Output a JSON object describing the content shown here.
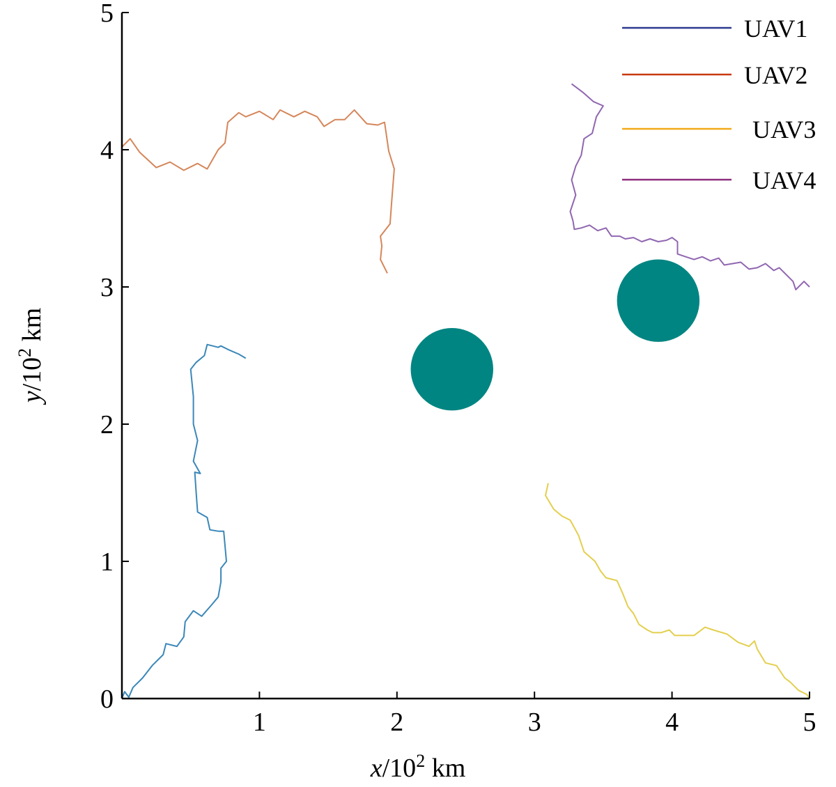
{
  "chart_data": {
    "type": "line",
    "title": "",
    "xlabel": {
      "var": "x",
      "rest": "/10",
      "sup": "2",
      "unit": " km"
    },
    "ylabel": {
      "var": "y",
      "rest": "/10",
      "sup": "2",
      "unit": " km"
    },
    "xlim": [
      0,
      5
    ],
    "ylim": [
      0,
      5
    ],
    "x_ticks": [
      "1",
      "2",
      "3",
      "4",
      "5"
    ],
    "y_ticks": [
      "0",
      "1",
      "2",
      "3",
      "4",
      "5"
    ],
    "grid": false,
    "legend_position": "top-right",
    "series": [
      {
        "name": "UAV1",
        "legend_color": "#2b3a8f",
        "line_color": "#3b87b8",
        "points": [
          [
            0.0,
            0.0
          ],
          [
            0.02,
            0.05
          ],
          [
            0.05,
            0.01
          ],
          [
            0.08,
            0.08
          ],
          [
            0.15,
            0.15
          ],
          [
            0.22,
            0.24
          ],
          [
            0.3,
            0.32
          ],
          [
            0.32,
            0.4
          ],
          [
            0.4,
            0.38
          ],
          [
            0.45,
            0.45
          ],
          [
            0.46,
            0.56
          ],
          [
            0.52,
            0.64
          ],
          [
            0.58,
            0.6
          ],
          [
            0.65,
            0.68
          ],
          [
            0.7,
            0.74
          ],
          [
            0.72,
            0.85
          ],
          [
            0.72,
            0.95
          ],
          [
            0.76,
            1.0
          ],
          [
            0.74,
            1.22
          ],
          [
            0.7,
            1.22
          ],
          [
            0.64,
            1.23
          ],
          [
            0.62,
            1.32
          ],
          [
            0.55,
            1.36
          ],
          [
            0.54,
            1.5
          ],
          [
            0.53,
            1.65
          ],
          [
            0.57,
            1.64
          ],
          [
            0.52,
            1.73
          ],
          [
            0.55,
            1.88
          ],
          [
            0.52,
            2.0
          ],
          [
            0.52,
            2.2
          ],
          [
            0.5,
            2.4
          ],
          [
            0.54,
            2.45
          ],
          [
            0.6,
            2.5
          ],
          [
            0.62,
            2.58
          ],
          [
            0.7,
            2.56
          ],
          [
            0.72,
            2.57
          ],
          [
            0.78,
            2.54
          ],
          [
            0.85,
            2.51
          ],
          [
            0.9,
            2.48
          ]
        ]
      },
      {
        "name": "UAV2",
        "legend_color": "#c8380f",
        "line_color": "#d5865a",
        "points": [
          [
            0.0,
            4.02
          ],
          [
            0.06,
            4.08
          ],
          [
            0.13,
            3.98
          ],
          [
            0.25,
            3.87
          ],
          [
            0.35,
            3.91
          ],
          [
            0.45,
            3.85
          ],
          [
            0.55,
            3.9
          ],
          [
            0.62,
            3.86
          ],
          [
            0.7,
            4.0
          ],
          [
            0.75,
            4.05
          ],
          [
            0.77,
            4.2
          ],
          [
            0.85,
            4.27
          ],
          [
            0.9,
            4.24
          ],
          [
            1.0,
            4.28
          ],
          [
            1.1,
            4.22
          ],
          [
            1.15,
            4.29
          ],
          [
            1.25,
            4.24
          ],
          [
            1.33,
            4.28
          ],
          [
            1.42,
            4.24
          ],
          [
            1.47,
            4.17
          ],
          [
            1.55,
            4.22
          ],
          [
            1.62,
            4.22
          ],
          [
            1.69,
            4.29
          ],
          [
            1.78,
            4.19
          ],
          [
            1.86,
            4.18
          ],
          [
            1.91,
            4.2
          ],
          [
            1.94,
            3.99
          ],
          [
            1.98,
            3.86
          ],
          [
            1.96,
            3.6
          ],
          [
            1.95,
            3.46
          ],
          [
            1.88,
            3.37
          ],
          [
            1.89,
            3.3
          ],
          [
            1.88,
            3.2
          ],
          [
            1.93,
            3.1
          ]
        ]
      },
      {
        "name": "UAV3",
        "legend_color": "#f2a918",
        "line_color": "#e3cf4e",
        "points": [
          [
            3.1,
            1.57
          ],
          [
            3.08,
            1.48
          ],
          [
            3.14,
            1.38
          ],
          [
            3.2,
            1.33
          ],
          [
            3.26,
            1.3
          ],
          [
            3.32,
            1.19
          ],
          [
            3.36,
            1.07
          ],
          [
            3.44,
            1.0
          ],
          [
            3.48,
            0.93
          ],
          [
            3.52,
            0.88
          ],
          [
            3.6,
            0.86
          ],
          [
            3.64,
            0.77
          ],
          [
            3.68,
            0.67
          ],
          [
            3.72,
            0.62
          ],
          [
            3.76,
            0.54
          ],
          [
            3.82,
            0.5
          ],
          [
            3.86,
            0.48
          ],
          [
            3.92,
            0.48
          ],
          [
            3.98,
            0.5
          ],
          [
            4.02,
            0.46
          ],
          [
            4.1,
            0.46
          ],
          [
            4.16,
            0.46
          ],
          [
            4.24,
            0.52
          ],
          [
            4.3,
            0.5
          ],
          [
            4.4,
            0.47
          ],
          [
            4.48,
            0.41
          ],
          [
            4.56,
            0.38
          ],
          [
            4.6,
            0.42
          ],
          [
            4.62,
            0.36
          ],
          [
            4.68,
            0.26
          ],
          [
            4.76,
            0.24
          ],
          [
            4.82,
            0.15
          ],
          [
            4.86,
            0.12
          ],
          [
            4.92,
            0.06
          ],
          [
            4.98,
            0.03
          ],
          [
            5.0,
            0.0
          ]
        ]
      },
      {
        "name": "UAV4",
        "legend_color": "#8c2c7d",
        "line_color": "#9066b0",
        "points": [
          [
            3.27,
            4.48
          ],
          [
            3.35,
            4.42
          ],
          [
            3.43,
            4.35
          ],
          [
            3.5,
            4.32
          ],
          [
            3.45,
            4.24
          ],
          [
            3.42,
            4.12
          ],
          [
            3.36,
            4.08
          ],
          [
            3.34,
            3.96
          ],
          [
            3.3,
            3.88
          ],
          [
            3.27,
            3.78
          ],
          [
            3.3,
            3.67
          ],
          [
            3.26,
            3.55
          ],
          [
            3.28,
            3.48
          ],
          [
            3.29,
            3.42
          ],
          [
            3.34,
            3.43
          ],
          [
            3.4,
            3.45
          ],
          [
            3.46,
            3.41
          ],
          [
            3.52,
            3.43
          ],
          [
            3.56,
            3.37
          ],
          [
            3.62,
            3.37
          ],
          [
            3.66,
            3.35
          ],
          [
            3.72,
            3.36
          ],
          [
            3.78,
            3.33
          ],
          [
            3.84,
            3.35
          ],
          [
            3.9,
            3.33
          ],
          [
            3.96,
            3.34
          ],
          [
            4.0,
            3.36
          ],
          [
            4.04,
            3.33
          ],
          [
            4.04,
            3.24
          ],
          [
            4.1,
            3.22
          ],
          [
            4.16,
            3.2
          ],
          [
            4.22,
            3.22
          ],
          [
            4.28,
            3.19
          ],
          [
            4.34,
            3.21
          ],
          [
            4.38,
            3.16
          ],
          [
            4.44,
            3.17
          ],
          [
            4.5,
            3.18
          ],
          [
            4.56,
            3.13
          ],
          [
            4.62,
            3.14
          ],
          [
            4.68,
            3.17
          ],
          [
            4.74,
            3.12
          ],
          [
            4.78,
            3.14
          ],
          [
            4.84,
            3.08
          ],
          [
            4.88,
            3.04
          ],
          [
            4.9,
            2.98
          ],
          [
            4.96,
            3.04
          ],
          [
            5.0,
            3.0
          ]
        ]
      }
    ],
    "obstacles": [
      {
        "cx": 2.4,
        "cy": 2.4,
        "r": 0.3,
        "color": "#008582"
      },
      {
        "cx": 3.9,
        "cy": 2.9,
        "r": 0.3,
        "color": "#008582"
      }
    ]
  }
}
